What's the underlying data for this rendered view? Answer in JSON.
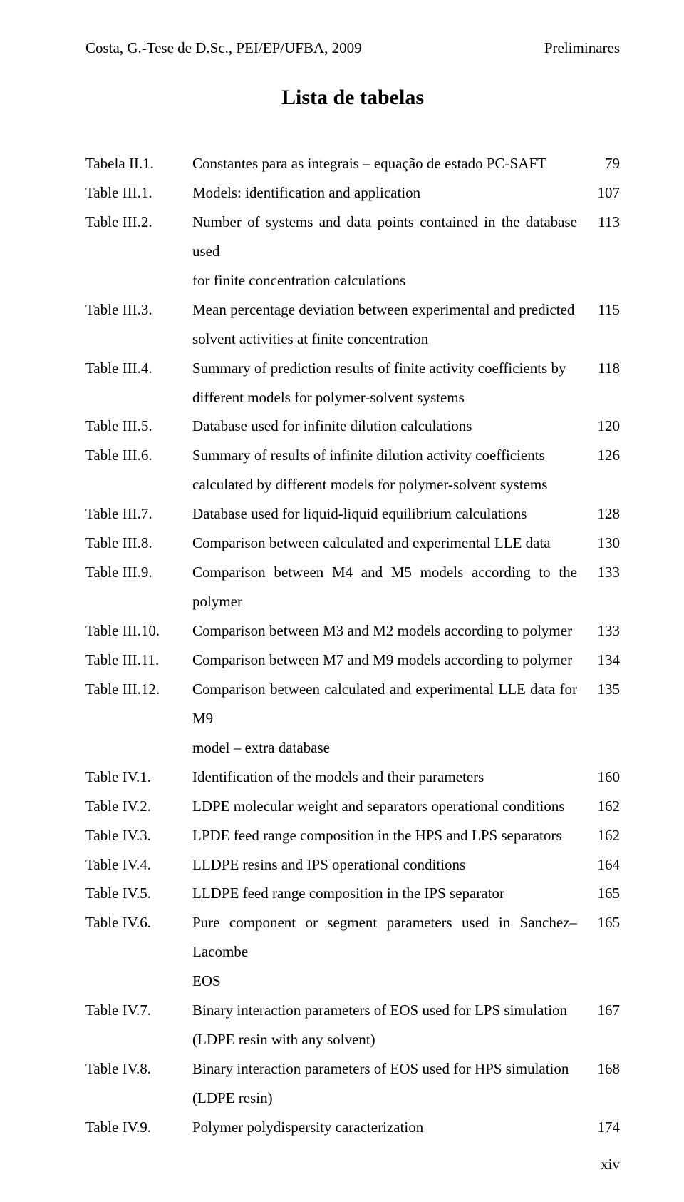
{
  "header_left": "Costa, G.-Tese de D.Sc., PEI/EP/UFBA, 2009",
  "header_right": "Preliminares",
  "title": "Lista de tabelas",
  "footer": "xiv",
  "fontsize_body": 21,
  "fontsize_title": 30,
  "line_height": 1.95,
  "text_color": "#000000",
  "background_color": "#ffffff",
  "entries": [
    {
      "label": "Tabela II.1.",
      "desc": "Constantes para as integrais – equação de estado PC-SAFT",
      "page": "79"
    },
    {
      "label": "Table III.1.",
      "desc": "Models: identification and application",
      "page": "107"
    },
    {
      "label": "Table III.2.",
      "desc": "Number of systems and data points contained in the database used",
      "page": "113",
      "cont": [
        "for finite concentration calculations"
      ]
    },
    {
      "label": "Table III.3.",
      "desc": "Mean percentage deviation between experimental and predicted",
      "page": "115",
      "cont": [
        "solvent activities at finite concentration"
      ]
    },
    {
      "label": "Table III.4.",
      "desc": "Summary of prediction results of finite activity coefficients by",
      "page": "118",
      "cont": [
        "different models for polymer-solvent systems"
      ]
    },
    {
      "label": "Table III.5.",
      "desc": "Database used for infinite dilution calculations",
      "page": "120"
    },
    {
      "label": "Table III.6.",
      "desc": "Summary of results of infinite dilution activity coefficients",
      "page": "126",
      "cont": [
        "calculated by different models for polymer-solvent systems"
      ]
    },
    {
      "label": "Table III.7.",
      "desc": "Database used for liquid-liquid equilibrium calculations",
      "page": "128"
    },
    {
      "label": "Table III.8.",
      "desc": "Comparison between calculated and experimental LLE data",
      "page": "130"
    },
    {
      "label": "Table III.9.",
      "desc": "Comparison between M4 and M5 models according to the polymer",
      "page": "133"
    },
    {
      "label": "Table III.10.",
      "desc": "Comparison between M3 and M2 models according to polymer",
      "page": "133"
    },
    {
      "label": "Table III.11.",
      "desc": "Comparison between M7 and M9 models according to polymer",
      "page": "134"
    },
    {
      "label": "Table III.12.",
      "desc": "Comparison between calculated and experimental LLE data for M9",
      "page": "135",
      "cont": [
        "model – extra database"
      ]
    },
    {
      "label": "Table IV.1.",
      "desc": "Identification of the models and their parameters",
      "page": "160"
    },
    {
      "label": "Table IV.2.",
      "desc": "LDPE molecular weight and separators operational conditions",
      "page": "162"
    },
    {
      "label": "Table IV.3.",
      "desc": "LPDE feed range composition in the HPS and LPS separators",
      "page": "162"
    },
    {
      "label": "Table IV.4.",
      "desc": "LLDPE resins and IPS operational conditions",
      "page": "164"
    },
    {
      "label": "Table IV.5.",
      "desc": "LLDPE feed range composition in the IPS separator",
      "page": "165"
    },
    {
      "label": "Table IV.6.",
      "desc": "Pure component or segment parameters used in Sanchez–Lacombe",
      "page": "165",
      "cont": [
        "EOS"
      ]
    },
    {
      "label": "Table IV.7.",
      "desc": "Binary interaction parameters of EOS used for LPS simulation",
      "page": "167",
      "cont": [
        "(LDPE resin with any solvent)"
      ]
    },
    {
      "label": "Table IV.8.",
      "desc": "Binary interaction parameters of EOS used for HPS simulation",
      "page": "168",
      "cont": [
        "(LDPE resin)"
      ]
    },
    {
      "label": "Table IV.9.",
      "desc": "Polymer polydispersity caracterization",
      "page": "174"
    }
  ]
}
